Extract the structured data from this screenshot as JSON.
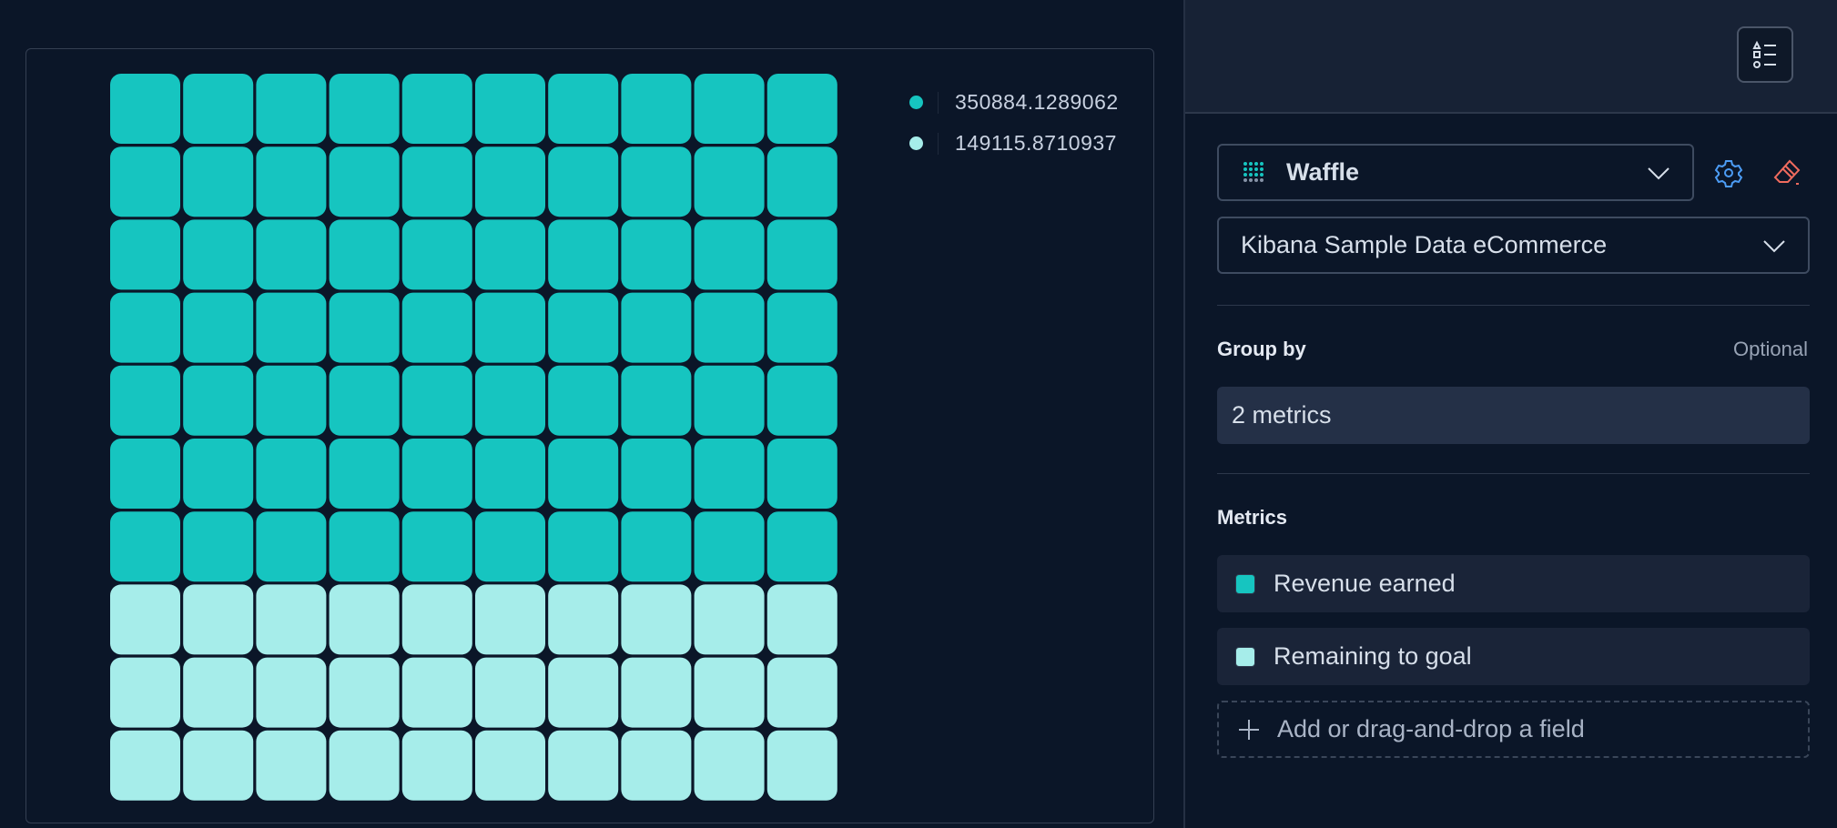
{
  "chart_data": {
    "type": "waffle",
    "grid": [
      10,
      10
    ],
    "series": [
      {
        "label": "350884.1289062",
        "value": 350884.1289062,
        "color": "#16c5c0"
      },
      {
        "label": "149115.8710937",
        "value": 149115.8710937,
        "color": "#a6edea"
      }
    ],
    "legend_position": "top-right"
  },
  "sidebar": {
    "chart_type": "Waffle",
    "chart_type_icon": "waffle-icon",
    "data_view": "Kibana Sample Data eCommerce",
    "group_by": {
      "title": "Group by",
      "optional": "Optional",
      "value": "2 metrics"
    },
    "metrics": {
      "title": "Metrics",
      "items": [
        {
          "label": "Revenue earned",
          "color": "#16c5c0"
        },
        {
          "label": "Remaining to goal",
          "color": "#a6edea"
        }
      ],
      "add_label": "Add or drag-and-drop a field"
    }
  }
}
